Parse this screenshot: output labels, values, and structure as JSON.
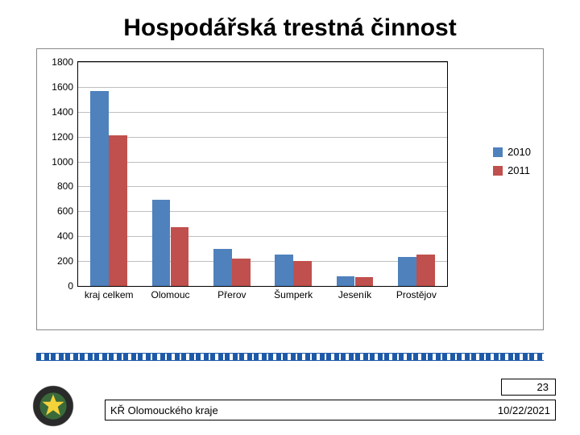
{
  "title": "Hospodářská trestná činnost",
  "chart": {
    "type": "bar",
    "categories": [
      "kraj celkem",
      "Olomouc",
      "Přerov",
      "Šumperk",
      "Jeseník",
      "Prostějov"
    ],
    "series": [
      {
        "name": "2010",
        "color": "#4f81bd",
        "values": [
          1570,
          690,
          300,
          250,
          80,
          230
        ]
      },
      {
        "name": "2011",
        "color": "#c0504d",
        "values": [
          1210,
          470,
          220,
          200,
          70,
          250
        ]
      }
    ],
    "y_axis": {
      "min": 0,
      "max": 1800,
      "step": 200
    },
    "grid_color": "#bfbfbf",
    "plot_border_color": "#000000",
    "outer_border_color": "#888888",
    "background_color": "#ffffff",
    "tick_fontsize": 12,
    "legend_fontsize": 13
  },
  "footer": {
    "org": "KŘ Olomouckého kraje",
    "date": "10/22/2021",
    "page": "23"
  },
  "logo": {
    "ring_outer": "#2a2a2a",
    "ring_text_color": "#ffffff",
    "star_color": "#f5d23a",
    "center_color": "#3a6a3a"
  }
}
